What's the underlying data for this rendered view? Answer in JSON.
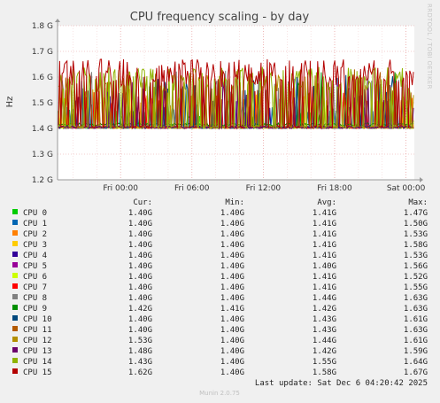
{
  "chart_data": {
    "type": "line",
    "title": "CPU frequency scaling - by day",
    "ylabel": "Hz",
    "ylim": [
      1.2,
      1.8
    ],
    "yticks": [
      "1.2 G",
      "1.3 G",
      "1.4 G",
      "1.5 G",
      "1.6 G",
      "1.7 G",
      "1.8 G"
    ],
    "xticks": [
      "Fri 00:00",
      "Fri 06:00",
      "Fri 12:00",
      "Fri 18:00",
      "Sat 00:00"
    ],
    "side_label": "RRDTOOL / TOBI OETIKER",
    "stat_headers": [
      "Cur:",
      "Min:",
      "Avg:",
      "Max:"
    ],
    "series": [
      {
        "name": "CPU 0",
        "color": "#00cc00",
        "cur": "1.40G",
        "min": "1.40G",
        "avg": "1.41G",
        "max": "1.47G"
      },
      {
        "name": "CPU 1",
        "color": "#0066b3",
        "cur": "1.40G",
        "min": "1.40G",
        "avg": "1.41G",
        "max": "1.50G"
      },
      {
        "name": "CPU 2",
        "color": "#ff8000",
        "cur": "1.40G",
        "min": "1.40G",
        "avg": "1.41G",
        "max": "1.53G"
      },
      {
        "name": "CPU 3",
        "color": "#ffcc00",
        "cur": "1.40G",
        "min": "1.40G",
        "avg": "1.41G",
        "max": "1.58G"
      },
      {
        "name": "CPU 4",
        "color": "#330099",
        "cur": "1.40G",
        "min": "1.40G",
        "avg": "1.41G",
        "max": "1.53G"
      },
      {
        "name": "CPU 5",
        "color": "#990099",
        "cur": "1.40G",
        "min": "1.40G",
        "avg": "1.40G",
        "max": "1.56G"
      },
      {
        "name": "CPU 6",
        "color": "#ccff00",
        "cur": "1.40G",
        "min": "1.40G",
        "avg": "1.41G",
        "max": "1.52G"
      },
      {
        "name": "CPU 7",
        "color": "#ff0000",
        "cur": "1.40G",
        "min": "1.40G",
        "avg": "1.41G",
        "max": "1.55G"
      },
      {
        "name": "CPU 8",
        "color": "#808080",
        "cur": "1.40G",
        "min": "1.40G",
        "avg": "1.44G",
        "max": "1.63G"
      },
      {
        "name": "CPU 9",
        "color": "#008f00",
        "cur": "1.42G",
        "min": "1.41G",
        "avg": "1.42G",
        "max": "1.63G"
      },
      {
        "name": "CPU 10",
        "color": "#00487d",
        "cur": "1.40G",
        "min": "1.40G",
        "avg": "1.43G",
        "max": "1.61G"
      },
      {
        "name": "CPU 11",
        "color": "#b35a00",
        "cur": "1.40G",
        "min": "1.40G",
        "avg": "1.43G",
        "max": "1.63G"
      },
      {
        "name": "CPU 12",
        "color": "#b38f00",
        "cur": "1.53G",
        "min": "1.40G",
        "avg": "1.44G",
        "max": "1.61G"
      },
      {
        "name": "CPU 13",
        "color": "#6b006b",
        "cur": "1.48G",
        "min": "1.40G",
        "avg": "1.42G",
        "max": "1.59G"
      },
      {
        "name": "CPU 14",
        "color": "#8fb300",
        "cur": "1.43G",
        "min": "1.40G",
        "avg": "1.55G",
        "max": "1.64G"
      },
      {
        "name": "CPU 15",
        "color": "#b30000",
        "cur": "1.62G",
        "min": "1.40G",
        "avg": "1.58G",
        "max": "1.67G"
      }
    ],
    "last_update": "Last update: Sat Dec  6 04:20:42 2025",
    "footer": "Munin 2.0.75"
  }
}
